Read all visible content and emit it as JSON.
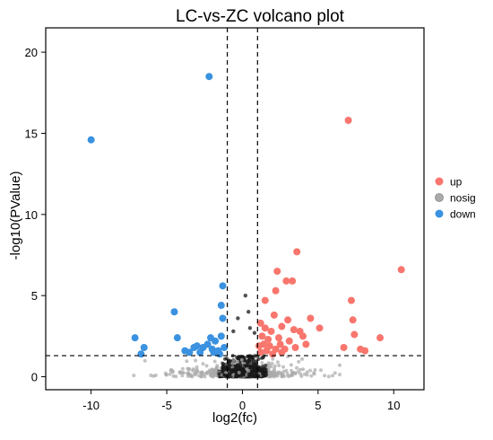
{
  "chart_data": {
    "type": "scatter",
    "title": "LC-vs-ZC volcano plot",
    "xlabel": "log2(fc)",
    "ylabel": "-log10(PValue)",
    "xlim": [
      -13,
      12
    ],
    "ylim": [
      -0.8,
      21.5
    ],
    "xticks": [
      -10,
      -5,
      0,
      5,
      10
    ],
    "yticks": [
      0,
      5,
      10,
      15,
      20
    ],
    "grid": false,
    "legend_position": "right",
    "thresholds": {
      "x": [
        -1,
        1
      ],
      "y": 1.3
    },
    "colors": {
      "up": "#F8766D",
      "nosig": "#AAAAAA",
      "down": "#3A92E0",
      "dashed": "#000000"
    },
    "series": [
      {
        "name": "up",
        "color": "#F8766D",
        "points": [
          [
            7.0,
            15.8
          ],
          [
            10.5,
            6.6
          ],
          [
            7.2,
            4.7
          ],
          [
            7.3,
            3.5
          ],
          [
            3.6,
            7.7
          ],
          [
            2.3,
            6.5
          ],
          [
            2.9,
            5.9
          ],
          [
            3.3,
            5.9
          ],
          [
            1.5,
            4.7
          ],
          [
            2.2,
            5.3
          ],
          [
            4.5,
            3.6
          ],
          [
            3.0,
            3.5
          ],
          [
            2.6,
            3.1
          ],
          [
            3.4,
            2.9
          ],
          [
            3.8,
            2.8
          ],
          [
            5.1,
            3.0
          ],
          [
            6.7,
            1.8
          ],
          [
            7.4,
            2.6
          ],
          [
            7.8,
            1.7
          ],
          [
            8.1,
            1.6
          ],
          [
            9.1,
            2.4
          ],
          [
            1.2,
            3.3
          ],
          [
            1.3,
            2.5
          ],
          [
            1.4,
            2.0
          ],
          [
            1.6,
            1.6
          ],
          [
            2.0,
            1.4
          ],
          [
            2.5,
            2.0
          ],
          [
            2.8,
            1.7
          ],
          [
            3.1,
            2.2
          ],
          [
            1.9,
            2.8
          ],
          [
            2.1,
            3.8
          ],
          [
            1.1,
            1.9
          ],
          [
            4.2,
            2.0
          ],
          [
            1.8,
            1.9
          ],
          [
            2.4,
            2.4
          ],
          [
            1.5,
            3.0
          ],
          [
            1.2,
            1.5
          ],
          [
            1.7,
            2.3
          ],
          [
            2.6,
            1.5
          ],
          [
            4.0,
            2.5
          ],
          [
            3.5,
            1.8
          ],
          [
            2.2,
            1.7
          ]
        ]
      },
      {
        "name": "down",
        "color": "#3A92E0",
        "points": [
          [
            -10.0,
            14.6
          ],
          [
            -2.2,
            18.5
          ],
          [
            -1.3,
            5.6
          ],
          [
            -1.4,
            4.4
          ],
          [
            -1.3,
            3.6
          ],
          [
            -4.5,
            4.0
          ],
          [
            -7.1,
            2.4
          ],
          [
            -4.3,
            2.4
          ],
          [
            -6.5,
            1.8
          ],
          [
            -6.7,
            1.4
          ],
          [
            -3.8,
            1.6
          ],
          [
            -3.2,
            1.8
          ],
          [
            -3.0,
            1.9
          ],
          [
            -2.6,
            1.8
          ],
          [
            -2.3,
            2.0
          ],
          [
            -2.0,
            1.7
          ],
          [
            -1.8,
            2.2
          ],
          [
            -1.6,
            1.6
          ],
          [
            -1.4,
            2.5
          ],
          [
            -1.2,
            1.8
          ],
          [
            -3.5,
            1.5
          ],
          [
            -2.8,
            1.5
          ],
          [
            -1.5,
            1.4
          ],
          [
            -2.1,
            2.4
          ],
          [
            -1.9,
            1.5
          ]
        ]
      }
    ],
    "nosig": {
      "name": "nosig",
      "color": "#AAAAAA",
      "approx_count": 1500,
      "x_range": [
        -8,
        8
      ],
      "y_range": [
        0,
        1.3
      ],
      "notable_points": [
        [
          0.2,
          5.0
        ],
        [
          0.4,
          4.0
        ],
        [
          -0.3,
          3.6
        ],
        [
          0.5,
          3.0
        ],
        [
          -0.6,
          2.8
        ],
        [
          0.8,
          2.7
        ]
      ]
    }
  }
}
